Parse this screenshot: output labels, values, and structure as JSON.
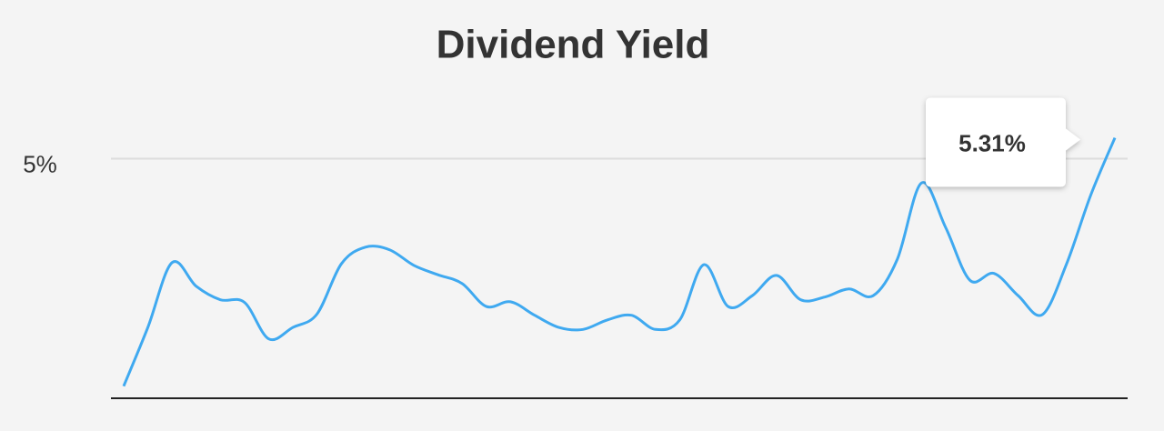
{
  "chart_data": {
    "type": "line",
    "title": "Dividend Yield",
    "series": [
      {
        "color": "#3fa9f0",
        "values": [
          1.63,
          2.5,
          3.46,
          3.11,
          2.91,
          2.87,
          2.33,
          2.5,
          2.7,
          3.44,
          3.69,
          3.65,
          3.42,
          3.28,
          3.15,
          2.81,
          2.88,
          2.68,
          2.5,
          2.47,
          2.61,
          2.68,
          2.47,
          2.61,
          3.43,
          2.81,
          2.97,
          3.27,
          2.91,
          2.95,
          3.07,
          2.97,
          3.51,
          4.64,
          3.98,
          3.2,
          3.3,
          2.97,
          2.69,
          3.44,
          4.46,
          5.31
        ],
        "value_labels": [
          null,
          null,
          null,
          null,
          null,
          null,
          null,
          null,
          null,
          null,
          null,
          null,
          null,
          null,
          null,
          null,
          null,
          null,
          null,
          null,
          null,
          null,
          null,
          null,
          null,
          null,
          null,
          null,
          null,
          null,
          null,
          null,
          null,
          null,
          null,
          null,
          null,
          null,
          null,
          null,
          null,
          "5.31%"
        ]
      }
    ],
    "ylim": [
      1.45,
      5.6
    ],
    "yticks": [
      {
        "value": 5,
        "label": "5%"
      }
    ],
    "grid": true
  }
}
